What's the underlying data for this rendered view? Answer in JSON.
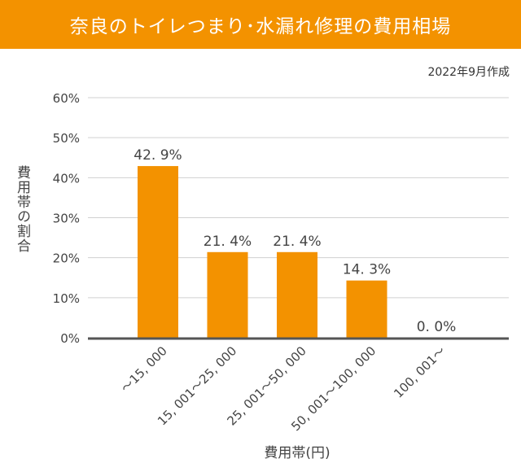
{
  "title": "奈良のトイレつまり･水漏れ修理の費用相場",
  "date_note": "2022年9月作成",
  "chart_data": {
    "type": "bar",
    "title": "奈良のトイレつまり･水漏れ修理の費用相場",
    "xlabel": "費用帯(円)",
    "ylabel": "費用帯の割合",
    "categories": [
      "～15, 000",
      "15, 001～25, 000",
      "25, 001～50, 000",
      "50, 001～100, 000",
      "100, 001～"
    ],
    "values": [
      42.9,
      21.4,
      21.4,
      14.3,
      0.0
    ],
    "data_labels": [
      "42. 9%",
      "21. 4%",
      "21. 4%",
      "14. 3%",
      "0. 0%"
    ],
    "ylim": [
      0,
      60
    ],
    "yticks": [
      "0%",
      "10%",
      "20%",
      "30%",
      "40%",
      "50%",
      "60%"
    ],
    "grid": true,
    "bar_color": "#f39200"
  }
}
